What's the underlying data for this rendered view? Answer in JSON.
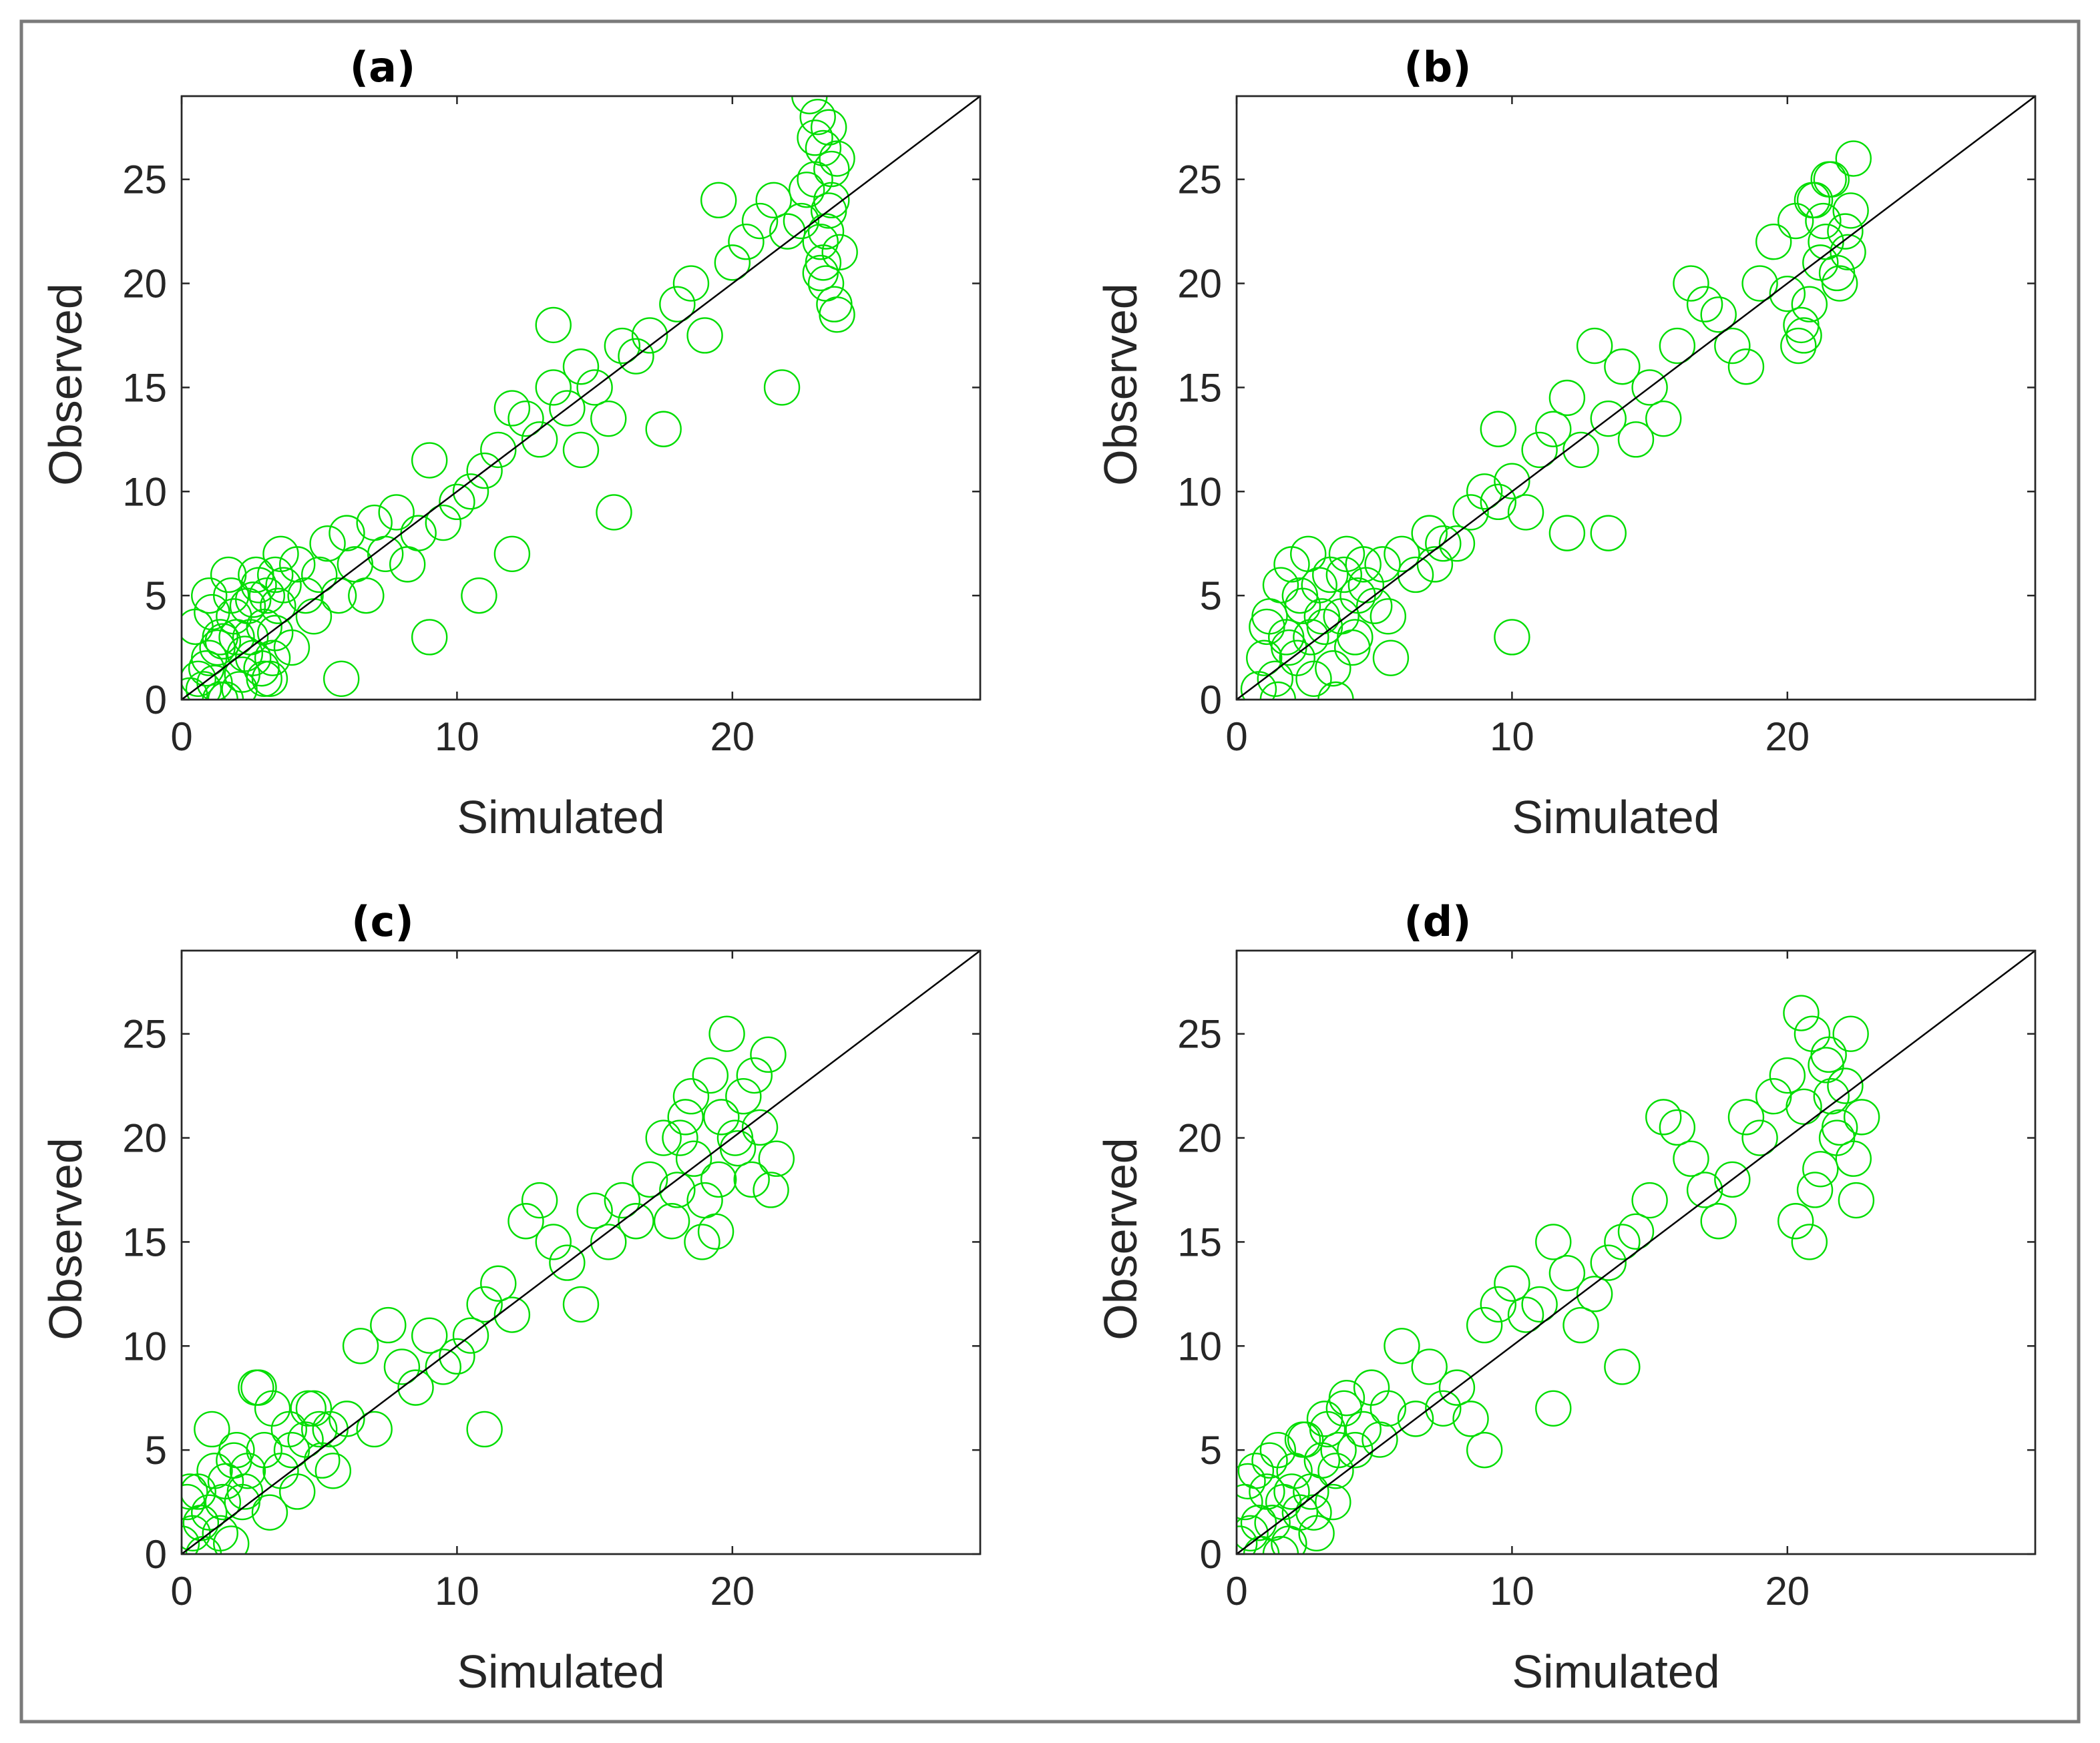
{
  "figure": {
    "colors": {
      "marker": "#00dd00",
      "reference_line": "#000000",
      "axes": "#262626",
      "frame": "#7a7a7a"
    }
  },
  "chart_data": [
    {
      "type": "scatter",
      "title": "(a)",
      "xlabel": "Simulated",
      "ylabel": "Observed",
      "xlim": [
        0,
        29
      ],
      "ylim": [
        0,
        29
      ],
      "xticks": [
        0,
        10,
        20
      ],
      "yticks": [
        0,
        5,
        10,
        15,
        20,
        25
      ],
      "reference_line": {
        "from": [
          0,
          0
        ],
        "to": [
          29,
          29
        ]
      },
      "series": [
        {
          "name": "points",
          "marker": "open-circle",
          "x": [
            0.3,
            0.6,
            0.8,
            1.0,
            1.2,
            1.4,
            0.5,
            0.9,
            1.1,
            1.3,
            1.6,
            1.8,
            2.0,
            2.2,
            2.4,
            2.6,
            2.8,
            3.0,
            3.2,
            3.4,
            1.5,
            1.9,
            2.1,
            2.5,
            2.7,
            2.9,
            3.1,
            3.3,
            3.5,
            3.6,
            1.0,
            1.4,
            1.7,
            2.3,
            2.6,
            3.0,
            3.4,
            3.7,
            4.0,
            4.2,
            4.5,
            4.8,
            5.0,
            5.3,
            5.7,
            6.0,
            6.3,
            6.7,
            7.0,
            7.4,
            7.8,
            8.2,
            8.6,
            9.0,
            9.5,
            10.0,
            10.5,
            11.0,
            11.5,
            12.0,
            12.5,
            13.0,
            13.5,
            14.0,
            14.5,
            15.0,
            15.5,
            16.0,
            16.5,
            17.0,
            17.5,
            18.0,
            18.5,
            19.0,
            19.5,
            20.0,
            20.5,
            21.0,
            21.5,
            22.0,
            22.5,
            23.0,
            23.2,
            23.4,
            23.6,
            23.8,
            23.0,
            23.3,
            23.5,
            23.7,
            23.1,
            23.4,
            23.6,
            22.8,
            23.9,
            22.7,
            23.2,
            23.5,
            23.8,
            23.3,
            10.8,
            15.7,
            21.8,
            5.8,
            13.5,
            14.5,
            12.0,
            9.0
          ],
          "y": [
            0.2,
            1.0,
            0.5,
            2.0,
            0.8,
            3.0,
            3.5,
            1.5,
            4.2,
            2.5,
            0.0,
            5.0,
            3.0,
            1.2,
            4.5,
            2.0,
            5.5,
            3.5,
            1.0,
            6.0,
            2.8,
            4.0,
            0.5,
            3.0,
            6.0,
            1.5,
            5.0,
            2.0,
            4.5,
            7.0,
            5.0,
            0.0,
            6.0,
            2.2,
            4.8,
            1.0,
            3.2,
            5.5,
            2.5,
            6.5,
            5.0,
            4.0,
            6.0,
            7.5,
            5.0,
            8.0,
            6.5,
            5.0,
            8.5,
            7.0,
            9.0,
            6.5,
            8.0,
            11.5,
            8.5,
            9.5,
            10.0,
            11.0,
            12.0,
            14.0,
            13.5,
            12.5,
            15.0,
            14.0,
            16.0,
            15.0,
            13.5,
            17.0,
            16.5,
            17.5,
            13.0,
            19.0,
            20.0,
            17.5,
            24.0,
            21.0,
            22.0,
            23.0,
            24.0,
            22.5,
            23.0,
            25.0,
            22.0,
            20.0,
            24.0,
            26.0,
            27.0,
            21.0,
            23.5,
            19.0,
            28.0,
            22.5,
            25.5,
            29.0,
            21.5,
            24.5,
            20.5,
            27.5,
            18.5,
            26.5,
            5.0,
            9.0,
            15.0,
            1.0,
            18.0,
            12.0,
            7.0,
            3.0
          ]
        }
      ]
    },
    {
      "type": "scatter",
      "title": "(b)",
      "xlabel": "Simulated",
      "ylabel": "Observed",
      "xlim": [
        0,
        29
      ],
      "ylim": [
        0,
        29
      ],
      "xticks": [
        0,
        10,
        20
      ],
      "yticks": [
        0,
        5,
        10,
        15,
        20,
        25
      ],
      "reference_line": {
        "from": [
          0,
          0
        ],
        "to": [
          29,
          29
        ]
      },
      "series": [
        {
          "name": "points",
          "marker": "open-circle",
          "x": [
            0.8,
            1.0,
            1.2,
            1.4,
            1.6,
            1.8,
            2.0,
            2.2,
            2.4,
            2.6,
            2.8,
            3.0,
            3.2,
            3.4,
            3.6,
            3.8,
            4.0,
            4.2,
            4.4,
            4.6,
            1.1,
            1.5,
            1.9,
            2.3,
            2.7,
            3.1,
            3.5,
            3.9,
            4.3,
            4.7,
            5.0,
            5.3,
            5.6,
            6.0,
            6.5,
            7.0,
            7.5,
            8.0,
            8.5,
            9.0,
            9.5,
            10.0,
            10.5,
            11.0,
            11.5,
            12.0,
            12.5,
            13.0,
            13.5,
            14.0,
            14.5,
            15.0,
            15.5,
            16.0,
            16.5,
            17.0,
            17.5,
            18.0,
            18.5,
            19.0,
            19.5,
            20.0,
            20.3,
            20.6,
            20.9,
            21.2,
            21.5,
            21.8,
            22.1,
            22.4,
            20.5,
            21.0,
            21.4,
            21.9,
            22.3,
            20.8,
            21.6,
            22.2,
            20.4,
            21.3,
            10.0,
            9.5,
            13.5,
            7.2,
            5.5,
            12.0
          ],
          "y": [
            0.5,
            2.0,
            4.0,
            1.0,
            5.5,
            3.0,
            6.5,
            2.0,
            4.5,
            7.0,
            1.0,
            5.5,
            3.5,
            6.0,
            0.0,
            4.0,
            7.0,
            2.5,
            5.0,
            6.5,
            3.5,
            0.0,
            2.5,
            5.0,
            3.0,
            4.0,
            1.5,
            6.0,
            3.0,
            5.5,
            4.5,
            6.5,
            2.0,
            7.0,
            6.0,
            8.0,
            7.5,
            7.5,
            9.0,
            10.0,
            9.5,
            10.5,
            9.0,
            12.0,
            13.0,
            14.5,
            12.0,
            17.0,
            13.5,
            16.0,
            12.5,
            15.0,
            13.5,
            17.0,
            20.0,
            19.0,
            18.5,
            17.0,
            16.0,
            20.0,
            22.0,
            19.5,
            23.0,
            17.5,
            24.0,
            21.0,
            25.0,
            20.5,
            22.5,
            26.0,
            18.0,
            24.0,
            22.0,
            20.0,
            23.5,
            19.0,
            25.0,
            21.5,
            17.0,
            23.0,
            3.0,
            13.0,
            8.0,
            6.5,
            4.0,
            8.0
          ]
        }
      ]
    },
    {
      "type": "scatter",
      "title": "(c)",
      "xlabel": "Simulated",
      "ylabel": "Observed",
      "xlim": [
        0,
        29
      ],
      "ylim": [
        0,
        29
      ],
      "xticks": [
        0,
        10,
        20
      ],
      "yticks": [
        0,
        5,
        10,
        15,
        20,
        25
      ],
      "reference_line": {
        "from": [
          0,
          0
        ],
        "to": [
          29,
          29
        ]
      },
      "series": [
        {
          "name": "points",
          "marker": "open-circle",
          "x": [
            0.0,
            0.2,
            0.4,
            0.6,
            0.8,
            1.0,
            1.2,
            1.4,
            1.6,
            1.8,
            2.0,
            2.2,
            2.4,
            0.3,
            0.7,
            1.1,
            1.5,
            1.9,
            2.3,
            2.7,
            3.0,
            3.3,
            3.6,
            3.9,
            4.2,
            4.5,
            4.8,
            5.1,
            5.4,
            3.2,
            4.0,
            4.6,
            5.0,
            5.5,
            6.0,
            6.5,
            7.0,
            7.5,
            8.0,
            8.5,
            9.0,
            9.5,
            10.0,
            10.5,
            11.0,
            11.5,
            12.0,
            12.5,
            13.0,
            13.5,
            14.0,
            14.5,
            15.0,
            15.5,
            16.0,
            16.5,
            17.0,
            17.5,
            18.0,
            18.3,
            18.6,
            18.9,
            19.2,
            19.5,
            19.8,
            20.1,
            20.4,
            20.7,
            21.0,
            21.3,
            21.6,
            17.8,
            18.5,
            19.0,
            19.6,
            20.2,
            20.8,
            21.4,
            18.1,
            19.4,
            2.8,
            11.0
          ],
          "y": [
            0.5,
            2.5,
            1.0,
            3.0,
            0.0,
            2.0,
            4.0,
            1.0,
            3.5,
            0.5,
            5.0,
            2.5,
            4.0,
            3.0,
            1.5,
            6.0,
            2.5,
            4.5,
            3.0,
            8.0,
            5.0,
            7.0,
            4.0,
            6.0,
            3.0,
            5.5,
            7.0,
            4.5,
            6.0,
            2.0,
            5.0,
            7.0,
            6.0,
            4.0,
            6.5,
            10.0,
            6.0,
            11.0,
            9.0,
            8.0,
            10.5,
            9.0,
            9.5,
            10.5,
            12.0,
            13.0,
            11.5,
            16.0,
            17.0,
            15.0,
            14.0,
            12.0,
            16.5,
            15.0,
            17.0,
            16.0,
            18.0,
            20.0,
            17.5,
            21.0,
            19.0,
            15.0,
            23.0,
            18.0,
            25.0,
            20.0,
            22.0,
            18.0,
            20.5,
            24.0,
            19.0,
            16.0,
            22.0,
            17.0,
            21.0,
            19.5,
            23.0,
            17.5,
            20.0,
            15.5,
            8.0,
            6.0
          ]
        }
      ]
    },
    {
      "type": "scatter",
      "title": "(d)",
      "xlabel": "Simulated",
      "ylabel": "Observed",
      "xlim": [
        0,
        29
      ],
      "ylim": [
        0,
        29
      ],
      "xticks": [
        0,
        10,
        20
      ],
      "yticks": [
        0,
        5,
        10,
        15,
        20,
        25
      ],
      "reference_line": {
        "from": [
          0,
          0
        ],
        "to": [
          29,
          29
        ]
      },
      "series": [
        {
          "name": "points",
          "marker": "open-circle",
          "x": [
            0.1,
            0.3,
            0.5,
            0.7,
            0.9,
            1.1,
            1.3,
            1.5,
            1.7,
            1.9,
            2.1,
            2.3,
            2.5,
            2.7,
            2.9,
            3.1,
            3.3,
            3.5,
            3.7,
            3.9,
            0.4,
            0.8,
            1.2,
            1.6,
            2.0,
            2.4,
            2.8,
            3.2,
            3.6,
            4.0,
            4.3,
            4.6,
            4.9,
            5.2,
            5.5,
            6.0,
            6.5,
            7.0,
            7.5,
            8.0,
            8.5,
            9.0,
            9.5,
            10.0,
            10.5,
            11.0,
            11.5,
            12.0,
            12.5,
            13.0,
            13.5,
            14.0,
            14.5,
            15.0,
            15.5,
            16.0,
            16.5,
            17.0,
            17.5,
            18.0,
            18.5,
            19.0,
            19.5,
            20.0,
            20.3,
            20.6,
            20.9,
            21.2,
            21.5,
            21.8,
            22.1,
            22.4,
            22.7,
            20.5,
            21.0,
            21.4,
            21.9,
            22.3,
            20.8,
            21.6,
            22.5,
            14.0,
            11.5,
            9.0
          ],
          "y": [
            0.5,
            2.5,
            1.0,
            4.0,
            0.0,
            3.0,
            1.5,
            5.0,
            2.5,
            0.5,
            4.0,
            2.0,
            5.5,
            3.0,
            1.0,
            4.5,
            6.0,
            2.5,
            5.0,
            7.0,
            3.5,
            1.5,
            4.5,
            0.0,
            3.0,
            5.5,
            2.0,
            6.5,
            4.0,
            7.5,
            5.0,
            6.0,
            8.0,
            5.5,
            7.0,
            10.0,
            6.5,
            9.0,
            7.0,
            8.0,
            6.5,
            11.0,
            12.0,
            13.0,
            11.5,
            12.0,
            15.0,
            13.5,
            11.0,
            12.5,
            14.0,
            15.0,
            15.5,
            17.0,
            21.0,
            20.5,
            19.0,
            17.5,
            16.0,
            18.0,
            21.0,
            20.0,
            22.0,
            23.0,
            16.0,
            21.5,
            25.0,
            18.5,
            24.0,
            20.0,
            22.5,
            19.0,
            21.0,
            26.0,
            17.5,
            23.5,
            20.5,
            25.0,
            15.0,
            22.0,
            17.0,
            9.0,
            7.0,
            5.0
          ]
        }
      ]
    }
  ]
}
